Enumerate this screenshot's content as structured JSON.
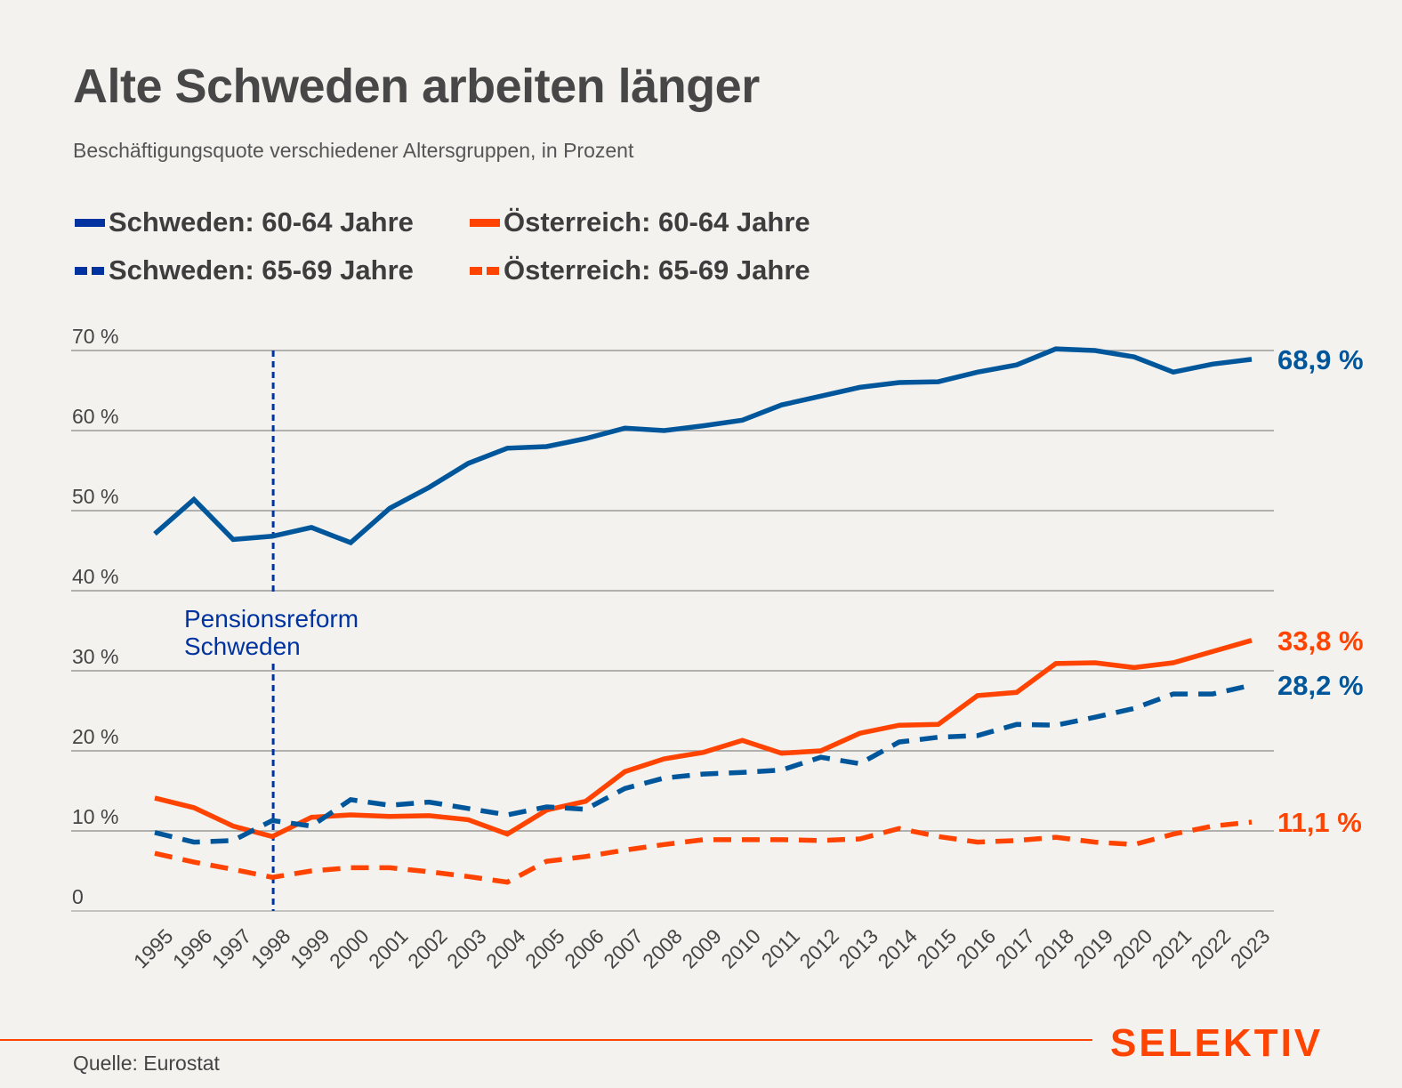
{
  "header": {
    "title": "Alte Schweden arbeiten länger",
    "subtitle": "Beschäftigungsquote verschiedener Altersgruppen, in Prozent"
  },
  "colors": {
    "background": "#f3f2ef",
    "sweden": "#00569b",
    "sweden_legend": "#0033a0",
    "austria": "#ff4300",
    "reform_line": "#0033a0",
    "grid": "#9a9a9a",
    "text": "#444444"
  },
  "legend": {
    "items": [
      {
        "label": "Schweden: 60-64 Jahre",
        "style": "solid",
        "color": "#0033a0"
      },
      {
        "label": "Österreich: 60-64 Jahre",
        "style": "solid",
        "color": "#ff4300"
      },
      {
        "label": "Schweden: 65-69 Jahre",
        "style": "dashed",
        "color": "#0033a0"
      },
      {
        "label": "Österreich: 65-69 Jahre",
        "style": "dashed",
        "color": "#ff4300"
      }
    ]
  },
  "chart_data": {
    "type": "line",
    "title": "Alte Schweden arbeiten länger",
    "subtitle": "Beschäftigungsquote verschiedener Altersgruppen, in Prozent",
    "xlabel": "",
    "ylabel": "",
    "ylim": [
      0,
      70
    ],
    "grid": true,
    "legend_position": "top-left",
    "yticks": [
      0,
      10,
      20,
      30,
      40,
      50,
      60,
      70
    ],
    "ytick_labels": [
      "0",
      "10 %",
      "20 %",
      "30 %",
      "40 %",
      "50 %",
      "60 %",
      "70 %"
    ],
    "x": [
      "1995",
      "1996",
      "1997",
      "1998",
      "1999",
      "2000",
      "2001",
      "2002",
      "2003",
      "2004",
      "2005",
      "2006",
      "2007",
      "2008",
      "2009",
      "2010",
      "2011",
      "2012",
      "2013",
      "2014",
      "2015",
      "2016",
      "2017",
      "2018",
      "2019",
      "2020",
      "2021",
      "2022",
      "2023"
    ],
    "series": [
      {
        "name": "Schweden: 60-64 Jahre",
        "style": "solid",
        "color": "#00569b",
        "values": [
          47.1,
          51.4,
          46.4,
          46.8,
          47.9,
          46.0,
          50.3,
          52.9,
          55.9,
          57.8,
          58.0,
          59.0,
          60.3,
          60.0,
          60.6,
          61.3,
          63.2,
          64.3,
          65.4,
          66.0,
          66.1,
          67.3,
          68.2,
          70.2,
          70.0,
          69.2,
          67.3,
          68.3,
          68.9
        ],
        "end_label": "68,9 %"
      },
      {
        "name": "Österreich: 60-64 Jahre",
        "style": "solid",
        "color": "#ff4300",
        "values": [
          14.1,
          12.9,
          10.6,
          9.3,
          11.7,
          12.0,
          11.8,
          11.9,
          11.4,
          9.6,
          12.6,
          13.7,
          17.4,
          19.0,
          19.8,
          21.3,
          19.7,
          20.0,
          22.2,
          23.2,
          23.3,
          26.9,
          27.3,
          30.9,
          31.0,
          30.4,
          31.0,
          32.4,
          33.8
        ],
        "end_label": "33,8 %"
      },
      {
        "name": "Schweden: 65-69 Jahre",
        "style": "dashed",
        "color": "#00569b",
        "values": [
          9.8,
          8.6,
          8.8,
          11.3,
          10.6,
          13.9,
          13.2,
          13.6,
          12.8,
          12.0,
          13.0,
          12.7,
          15.3,
          16.6,
          17.1,
          17.3,
          17.6,
          19.2,
          18.4,
          21.1,
          21.7,
          21.9,
          23.3,
          23.2,
          24.2,
          25.3,
          27.1,
          27.1,
          28.2
        ],
        "end_label": "28,2 %"
      },
      {
        "name": "Österreich: 65-69 Jahre",
        "style": "dashed",
        "color": "#ff4300",
        "values": [
          7.2,
          6.1,
          5.2,
          4.2,
          5.0,
          5.4,
          5.4,
          4.9,
          4.3,
          3.6,
          6.2,
          6.8,
          7.6,
          8.3,
          8.9,
          8.9,
          8.9,
          8.8,
          9.0,
          10.3,
          9.3,
          8.6,
          8.8,
          9.2,
          8.6,
          8.3,
          9.6,
          10.6,
          11.1
        ],
        "end_label": "11,1 %"
      }
    ],
    "annotations": [
      {
        "type": "vertical-line",
        "x": "1998",
        "style": "dotted",
        "label_lines": [
          "Pensionsreform",
          "Schweden"
        ]
      }
    ]
  },
  "footer": {
    "source": "Quelle: Eurostat",
    "brand": "SELEKTIV"
  }
}
